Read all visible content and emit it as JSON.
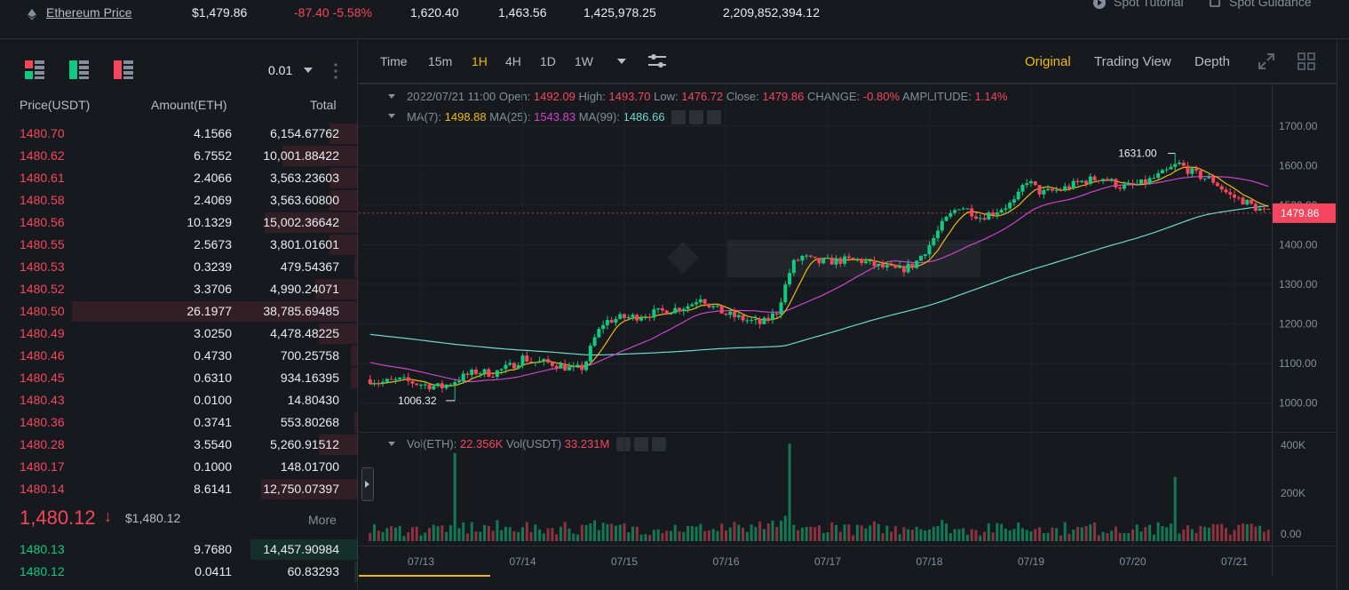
{
  "ticker": {
    "pair_link": "Ethereum Price",
    "last_price": "$1,479.86",
    "change": "-87.40 -5.58%",
    "high": "1,620.40",
    "low": "1,463.56",
    "volume_eth": "1,425,978.25",
    "volume_usdt": "2,209,852,394.12",
    "spot_tutorial": "Spot Tutorial",
    "spot_guidance": "Spot Guidance"
  },
  "orderbook": {
    "precision": "0.01",
    "headers": {
      "price": "Price(USDT)",
      "amount": "Amount(ETH)",
      "total": "Total"
    },
    "asks": [
      {
        "price": "1480.70",
        "amount": "4.1566",
        "total": "6,154.67762",
        "depth": 0.08
      },
      {
        "price": "1480.62",
        "amount": "6.7552",
        "total": "10,001.88422",
        "depth": 0.21
      },
      {
        "price": "1480.61",
        "amount": "2.4066",
        "total": "3,563.23603",
        "depth": 0.08
      },
      {
        "price": "1480.58",
        "amount": "2.4069",
        "total": "3,563.60800",
        "depth": 0.08
      },
      {
        "price": "1480.56",
        "amount": "10.1329",
        "total": "15,002.36642",
        "depth": 0.26
      },
      {
        "price": "1480.55",
        "amount": "2.5673",
        "total": "3,801.01601",
        "depth": 0.08
      },
      {
        "price": "1480.53",
        "amount": "0.3239",
        "total": "479.54367",
        "depth": 0.01
      },
      {
        "price": "1480.52",
        "amount": "3.3706",
        "total": "4,990.24071",
        "depth": 0.12
      },
      {
        "price": "1480.50",
        "amount": "26.1977",
        "total": "38,785.69485",
        "depth": 0.8
      },
      {
        "price": "1480.49",
        "amount": "3.0250",
        "total": "4,478.48225",
        "depth": 0.11
      },
      {
        "price": "1480.46",
        "amount": "0.4730",
        "total": "700.25758",
        "depth": 0.02
      },
      {
        "price": "1480.45",
        "amount": "0.6310",
        "total": "934.16395",
        "depth": 0.02
      },
      {
        "price": "1480.43",
        "amount": "0.0100",
        "total": "14.80430",
        "depth": 0.0
      },
      {
        "price": "1480.36",
        "amount": "0.3741",
        "total": "553.80268",
        "depth": 0.01
      },
      {
        "price": "1480.28",
        "amount": "3.5540",
        "total": "5,260.91512",
        "depth": 0.11
      },
      {
        "price": "1480.17",
        "amount": "0.1000",
        "total": "148.01700",
        "depth": 0.0
      },
      {
        "price": "1480.14",
        "amount": "8.6141",
        "total": "12,750.07397",
        "depth": 0.27
      }
    ],
    "mid_price": "1,480.12",
    "mid_arrow": "↓",
    "mid_usd": "$1,480.12",
    "more_label": "More",
    "bids": [
      {
        "price": "1480.13",
        "amount": "9.7680",
        "total": "14,457.90984",
        "depth": 0.3
      },
      {
        "price": "1480.12",
        "amount": "0.0411",
        "total": "60.83293",
        "depth": 0.01
      }
    ]
  },
  "toolbar": {
    "timeframes": [
      "Time",
      "15m",
      "1H",
      "4H",
      "1D",
      "1W"
    ],
    "active_timeframe": "1H",
    "views": [
      "Original",
      "Trading View",
      "Depth"
    ],
    "active_view": "Original"
  },
  "legend": {
    "datetime": "2022/07/21 11:00",
    "open_label": "Open:",
    "open": "1492.09",
    "high_label": "High:",
    "high": "1493.70",
    "low_label": "Low:",
    "low": "1476.72",
    "close_label": "Close:",
    "close": "1479.86",
    "change_label": "CHANGE:",
    "change": "-0.80%",
    "amplitude_label": "AMPLITUDE:",
    "amplitude": "1.14%",
    "ma7_label": "MA(7):",
    "ma7": "1498.88",
    "ma25_label": "MA(25):",
    "ma25": "1543.83",
    "ma99_label": "MA(99):",
    "ma99": "1486.66",
    "vol_eth_label": "Vol(ETH):",
    "vol_eth": "22.356K",
    "vol_usdt_label": "Vol(USDT)",
    "vol_usdt": "33.231M"
  },
  "colors": {
    "up": "#0ecb81",
    "down": "#f6465d",
    "ma7": "#f0b90b",
    "ma25": "#cc44cc",
    "ma99": "#6fd6d0",
    "accent": "#f0b90b"
  },
  "chart_data": {
    "type": "candlestick",
    "x_tick_labels": [
      "07/13",
      "07/14",
      "07/15",
      "07/16",
      "07/17",
      "07/18",
      "07/19",
      "07/20",
      "07/21"
    ],
    "price_axis_labels": [
      "1700.00",
      "1600.00",
      "1500.00",
      "1400.00",
      "1300.00",
      "1200.00",
      "1100.00",
      "1000.00"
    ],
    "price_range": [
      950,
      1740
    ],
    "current_price_label": "1479.86",
    "max_marker_label": "1631.00",
    "min_marker_label": "1006.32",
    "volume_axis_labels": [
      "400K",
      "200K",
      "0.00"
    ],
    "volume_range": [
      0,
      430000
    ],
    "close_path": [
      [
        12.5,
        1060
      ],
      [
        12.6,
        1052
      ],
      [
        12.8,
        1058
      ],
      [
        13.0,
        1048
      ],
      [
        13.2,
        1040
      ],
      [
        13.4,
        1065
      ],
      [
        13.55,
        1080
      ],
      [
        13.7,
        1075
      ],
      [
        13.9,
        1095
      ],
      [
        14.0,
        1115
      ],
      [
        14.1,
        1105
      ],
      [
        14.3,
        1100
      ],
      [
        14.5,
        1085
      ],
      [
        14.6,
        1090
      ],
      [
        14.7,
        1160
      ],
      [
        14.8,
        1205
      ],
      [
        14.95,
        1215
      ],
      [
        15.1,
        1218
      ],
      [
        15.3,
        1228
      ],
      [
        15.5,
        1238
      ],
      [
        15.65,
        1248
      ],
      [
        15.75,
        1270
      ],
      [
        15.85,
        1245
      ],
      [
        16.0,
        1225
      ],
      [
        16.2,
        1210
      ],
      [
        16.35,
        1200
      ],
      [
        16.5,
        1230
      ],
      [
        16.65,
        1350
      ],
      [
        16.75,
        1370
      ],
      [
        16.9,
        1355
      ],
      [
        17.1,
        1360
      ],
      [
        17.3,
        1362
      ],
      [
        17.5,
        1345
      ],
      [
        17.7,
        1335
      ],
      [
        17.85,
        1350
      ],
      [
        18.0,
        1400
      ],
      [
        18.15,
        1460
      ],
      [
        18.3,
        1500
      ],
      [
        18.5,
        1470
      ],
      [
        18.65,
        1485
      ],
      [
        18.85,
        1510
      ],
      [
        18.95,
        1565
      ],
      [
        19.1,
        1530
      ],
      [
        19.3,
        1540
      ],
      [
        19.5,
        1560
      ],
      [
        19.7,
        1570
      ],
      [
        19.9,
        1545
      ],
      [
        20.1,
        1555
      ],
      [
        20.3,
        1580
      ],
      [
        20.45,
        1605
      ],
      [
        20.6,
        1580
      ],
      [
        20.8,
        1560
      ],
      [
        20.95,
        1525
      ],
      [
        21.1,
        1510
      ],
      [
        21.2,
        1495
      ],
      [
        21.32,
        1480
      ]
    ],
    "ma_start": {
      "ma25": 1105,
      "ma99": 1175
    }
  }
}
